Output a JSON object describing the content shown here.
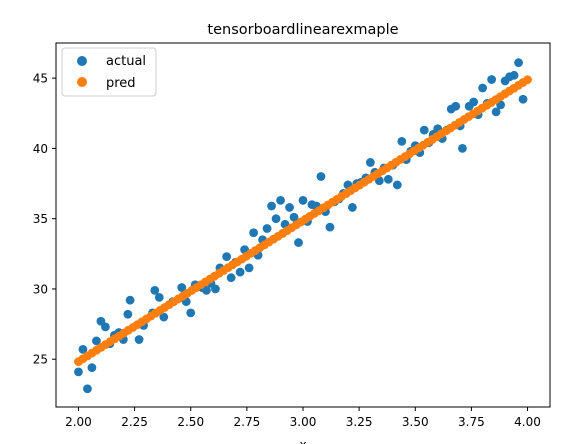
{
  "chart_data": {
    "type": "scatter",
    "title": "tensorboardlinearexmaple",
    "xlabel": "x",
    "ylabel": "",
    "xlim": [
      1.9,
      4.1
    ],
    "ylim": [
      21.6,
      47.5
    ],
    "xticks": [
      2.0,
      2.25,
      2.5,
      2.75,
      3.0,
      3.25,
      3.5,
      3.75,
      4.0
    ],
    "xtick_labels": [
      "2.00",
      "2.25",
      "2.50",
      "2.75",
      "3.00",
      "3.25",
      "3.50",
      "3.75",
      "4.00"
    ],
    "yticks": [
      25,
      30,
      35,
      40,
      45
    ],
    "ytick_labels": [
      "25",
      "30",
      "35",
      "40",
      "45"
    ],
    "grid": false,
    "legend_position": "upper-left",
    "series": [
      {
        "name": "actual",
        "color": "#1f77b4",
        "points": [
          [
            2.0,
            24.1
          ],
          [
            2.02,
            25.7
          ],
          [
            2.04,
            22.9
          ],
          [
            2.06,
            24.4
          ],
          [
            2.08,
            26.3
          ],
          [
            2.1,
            27.7
          ],
          [
            2.12,
            27.3
          ],
          [
            2.14,
            26.1
          ],
          [
            2.16,
            26.7
          ],
          [
            2.18,
            26.9
          ],
          [
            2.2,
            26.4
          ],
          [
            2.22,
            28.2
          ],
          [
            2.23,
            29.2
          ],
          [
            2.27,
            26.4
          ],
          [
            2.29,
            27.4
          ],
          [
            2.33,
            28.3
          ],
          [
            2.34,
            29.9
          ],
          [
            2.36,
            29.4
          ],
          [
            2.38,
            28.0
          ],
          [
            2.42,
            29.1
          ],
          [
            2.46,
            30.1
          ],
          [
            2.48,
            29.1
          ],
          [
            2.5,
            28.3
          ],
          [
            2.52,
            30.3
          ],
          [
            2.55,
            30.1
          ],
          [
            2.57,
            29.9
          ],
          [
            2.59,
            30.4
          ],
          [
            2.61,
            30.0
          ],
          [
            2.63,
            31.5
          ],
          [
            2.66,
            32.3
          ],
          [
            2.68,
            30.8
          ],
          [
            2.7,
            31.9
          ],
          [
            2.72,
            31.2
          ],
          [
            2.74,
            32.8
          ],
          [
            2.76,
            31.5
          ],
          [
            2.78,
            34.0
          ],
          [
            2.8,
            32.4
          ],
          [
            2.82,
            33.5
          ],
          [
            2.84,
            34.3
          ],
          [
            2.86,
            35.9
          ],
          [
            2.88,
            35.0
          ],
          [
            2.9,
            36.3
          ],
          [
            2.92,
            34.6
          ],
          [
            2.94,
            35.8
          ],
          [
            2.96,
            35.1
          ],
          [
            2.98,
            33.3
          ],
          [
            3.0,
            36.3
          ],
          [
            3.02,
            34.8
          ],
          [
            3.04,
            36.0
          ],
          [
            3.06,
            35.9
          ],
          [
            3.08,
            38.0
          ],
          [
            3.1,
            35.5
          ],
          [
            3.12,
            34.4
          ],
          [
            3.14,
            36.2
          ],
          [
            3.16,
            36.4
          ],
          [
            3.18,
            36.8
          ],
          [
            3.2,
            37.4
          ],
          [
            3.22,
            35.8
          ],
          [
            3.24,
            37.5
          ],
          [
            3.26,
            37.6
          ],
          [
            3.28,
            37.9
          ],
          [
            3.3,
            39.0
          ],
          [
            3.32,
            38.3
          ],
          [
            3.34,
            37.7
          ],
          [
            3.36,
            38.6
          ],
          [
            3.38,
            37.8
          ],
          [
            3.4,
            38.8
          ],
          [
            3.42,
            37.4
          ],
          [
            3.44,
            40.5
          ],
          [
            3.46,
            39.2
          ],
          [
            3.48,
            39.8
          ],
          [
            3.5,
            40.2
          ],
          [
            3.52,
            39.7
          ],
          [
            3.54,
            41.3
          ],
          [
            3.56,
            40.4
          ],
          [
            3.58,
            41.0
          ],
          [
            3.6,
            41.4
          ],
          [
            3.62,
            40.7
          ],
          [
            3.64,
            41.3
          ],
          [
            3.66,
            42.8
          ],
          [
            3.68,
            43.0
          ],
          [
            3.7,
            41.6
          ],
          [
            3.71,
            40.0
          ],
          [
            3.74,
            43.0
          ],
          [
            3.76,
            43.3
          ],
          [
            3.78,
            42.4
          ],
          [
            3.8,
            44.3
          ],
          [
            3.82,
            43.2
          ],
          [
            3.84,
            44.9
          ],
          [
            3.86,
            42.6
          ],
          [
            3.88,
            43.1
          ],
          [
            3.9,
            44.8
          ],
          [
            3.92,
            45.1
          ],
          [
            3.94,
            45.2
          ],
          [
            3.96,
            46.1
          ],
          [
            3.98,
            43.5
          ]
        ]
      },
      {
        "name": "pred",
        "color": "#ff7f0e",
        "slope": 10.03,
        "intercept": 4.77
      }
    ]
  }
}
